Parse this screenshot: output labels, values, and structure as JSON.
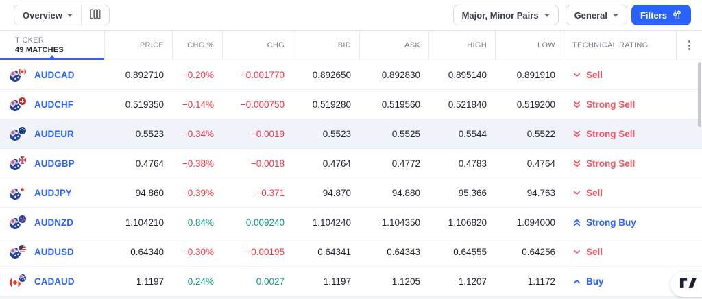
{
  "toolbar": {
    "view_dropdown": "Overview",
    "pairs_dropdown": "Major, Minor Pairs",
    "category_dropdown": "General",
    "filters_button": "Filters"
  },
  "table": {
    "ticker_header": "TICKER",
    "matches": "49 MATCHES",
    "columns": {
      "price": "PRICE",
      "chg_pct": "CHG %",
      "chg": "CHG",
      "bid": "BID",
      "ask": "ASK",
      "high": "HIGH",
      "low": "LOW",
      "rating": "TECHNICAL RATING"
    },
    "rows": [
      {
        "ticker": "AUDCAD",
        "base_flag": "aud",
        "quote_flag": "cad",
        "price": "0.892710",
        "chg_pct": "−0.20%",
        "chg": "−0.001770",
        "bid": "0.892650",
        "ask": "0.892830",
        "high": "0.895140",
        "low": "0.891910",
        "direction": "down",
        "rating": {
          "label": "Sell",
          "direction": "down",
          "strength": 1
        },
        "highlighted": false
      },
      {
        "ticker": "AUDCHF",
        "base_flag": "aud",
        "quote_flag": "chf",
        "price": "0.519350",
        "chg_pct": "−0.14%",
        "chg": "−0.000750",
        "bid": "0.519280",
        "ask": "0.519560",
        "high": "0.521840",
        "low": "0.519200",
        "direction": "down",
        "rating": {
          "label": "Strong Sell",
          "direction": "down",
          "strength": 2
        },
        "highlighted": false
      },
      {
        "ticker": "AUDEUR",
        "base_flag": "aud",
        "quote_flag": "eur",
        "price": "0.5523",
        "chg_pct": "−0.34%",
        "chg": "−0.0019",
        "bid": "0.5523",
        "ask": "0.5525",
        "high": "0.5544",
        "low": "0.5522",
        "direction": "down",
        "rating": {
          "label": "Strong Sell",
          "direction": "down",
          "strength": 2
        },
        "highlighted": true
      },
      {
        "ticker": "AUDGBP",
        "base_flag": "aud",
        "quote_flag": "gbp",
        "price": "0.4764",
        "chg_pct": "−0.38%",
        "chg": "−0.0018",
        "bid": "0.4764",
        "ask": "0.4772",
        "high": "0.4783",
        "low": "0.4764",
        "direction": "down",
        "rating": {
          "label": "Strong Sell",
          "direction": "down",
          "strength": 2
        },
        "highlighted": false
      },
      {
        "ticker": "AUDJPY",
        "base_flag": "aud",
        "quote_flag": "jpy",
        "price": "94.860",
        "chg_pct": "−0.39%",
        "chg": "−0.371",
        "bid": "94.870",
        "ask": "94.880",
        "high": "95.366",
        "low": "94.763",
        "direction": "down",
        "rating": {
          "label": "Sell",
          "direction": "down",
          "strength": 1
        },
        "highlighted": false
      },
      {
        "ticker": "AUDNZD",
        "base_flag": "aud",
        "quote_flag": "nzd",
        "price": "1.104210",
        "chg_pct": "0.84%",
        "chg": "0.009240",
        "bid": "1.104240",
        "ask": "1.104350",
        "high": "1.106820",
        "low": "1.094000",
        "direction": "up",
        "rating": {
          "label": "Strong Buy",
          "direction": "up",
          "strength": 2
        },
        "highlighted": false
      },
      {
        "ticker": "AUDUSD",
        "base_flag": "aud",
        "quote_flag": "usd",
        "price": "0.64340",
        "chg_pct": "−0.30%",
        "chg": "−0.00195",
        "bid": "0.64341",
        "ask": "0.64343",
        "high": "0.64555",
        "low": "0.64256",
        "direction": "down",
        "rating": {
          "label": "Sell",
          "direction": "down",
          "strength": 1
        },
        "highlighted": false
      },
      {
        "ticker": "CADAUD",
        "base_flag": "cad",
        "quote_flag": "aud",
        "price": "1.1197",
        "chg_pct": "0.24%",
        "chg": "0.0027",
        "bid": "1.1197",
        "ask": "1.1205",
        "high": "1.1207",
        "low": "1.1172",
        "direction": "up",
        "rating": {
          "label": "Buy",
          "direction": "up",
          "strength": 1
        },
        "highlighted": false
      }
    ]
  },
  "colors": {
    "accent_blue": "#2962FF",
    "negative_red": "#F23645",
    "rating_sell_red": "#F7525F",
    "positive_green": "#089981",
    "header_gray": "#787B86",
    "border_gray": "#E0E3EB",
    "row_highlight": "#F0F3FA"
  }
}
